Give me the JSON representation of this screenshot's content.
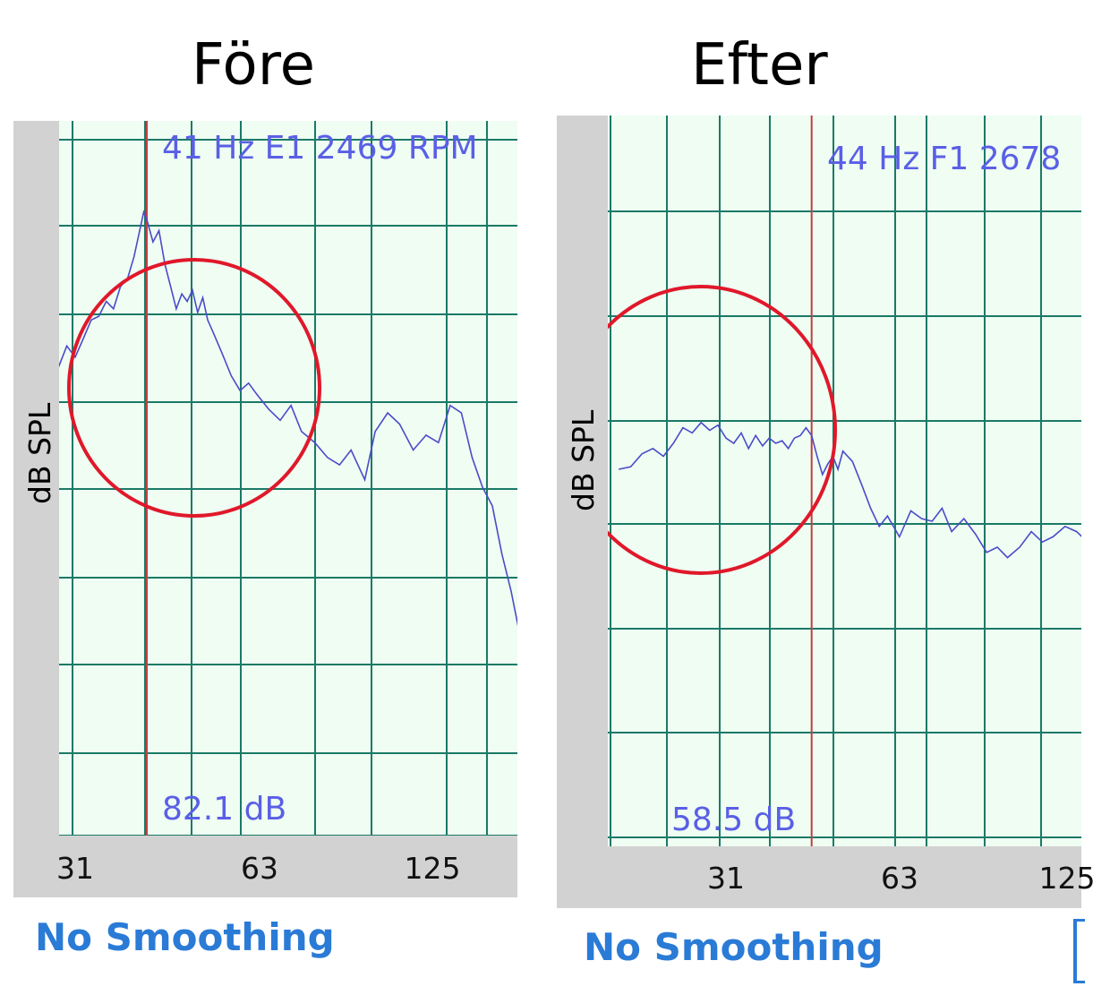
{
  "titles": {
    "before": "Före",
    "after": "Efter"
  },
  "chart_data": [
    {
      "type": "line",
      "title": "Före",
      "ylabel": "dB SPL",
      "xscale": "log",
      "x_ticks": [
        "31",
        "63",
        "125"
      ],
      "overlay_text": "41 Hz E1 2469 RPM",
      "level_text": "82.1 dB",
      "marker": {
        "label": "41 Hz",
        "x": 41,
        "color": "#c04040"
      },
      "series": [
        {
          "color": "#4b4bc8",
          "x": [
            26.5,
            28,
            29,
            30,
            31,
            32,
            33,
            34,
            35,
            36,
            37,
            38,
            39,
            40,
            40.5,
            41,
            42,
            43,
            44,
            45,
            46,
            47,
            48,
            49,
            50,
            51,
            52,
            53,
            55,
            57,
            59,
            61,
            63,
            66,
            69,
            72,
            75,
            79,
            83,
            87,
            91,
            96,
            100,
            105,
            110,
            116,
            122,
            128,
            134,
            140,
            146,
            152,
            158,
            164,
            170,
            175
          ],
          "y": [
            0.7,
            0.69,
            0.72,
            0.78,
            0.75,
            0.8,
            0.85,
            0.86,
            0.9,
            0.88,
            0.94,
            0.96,
            1.02,
            1.1,
            1.14,
            1.12,
            1.06,
            1.09,
            1.0,
            0.94,
            0.88,
            0.92,
            0.9,
            0.93,
            0.87,
            0.91,
            0.85,
            0.82,
            0.76,
            0.7,
            0.66,
            0.68,
            0.65,
            0.61,
            0.58,
            0.62,
            0.55,
            0.52,
            0.48,
            0.46,
            0.5,
            0.42,
            0.55,
            0.6,
            0.57,
            0.5,
            0.54,
            0.52,
            0.62,
            0.6,
            0.48,
            0.4,
            0.35,
            0.22,
            0.12,
            0.02
          ]
        }
      ]
    },
    {
      "type": "line",
      "title": "Efter",
      "ylabel": "dB SPL",
      "xscale": "log",
      "x_ticks": [
        "31",
        "63",
        "125"
      ],
      "overlay_text": "44 Hz F1 2678",
      "level_text": "58.5 dB",
      "marker": {
        "label": "44 Hz",
        "x": 44,
        "color": "#c04040"
      },
      "series": [
        {
          "color": "#4b4bc8",
          "x": [
            20,
            21,
            22,
            23,
            24,
            25,
            26,
            27,
            28,
            29,
            30,
            31,
            32,
            33,
            34,
            35,
            36,
            37,
            38,
            39,
            40,
            41,
            42,
            43,
            44,
            45,
            46,
            47,
            48,
            49,
            50,
            52,
            54,
            56,
            58,
            60,
            63,
            66,
            69,
            72,
            75,
            78,
            82,
            86,
            90,
            94,
            98,
            103,
            108,
            113,
            118,
            124,
            130,
            136
          ],
          "y": [
            0.5,
            0.51,
            0.56,
            0.58,
            0.55,
            0.6,
            0.66,
            0.64,
            0.68,
            0.65,
            0.67,
            0.62,
            0.6,
            0.64,
            0.58,
            0.63,
            0.59,
            0.62,
            0.6,
            0.61,
            0.58,
            0.62,
            0.63,
            0.66,
            0.63,
            0.55,
            0.48,
            0.52,
            0.55,
            0.5,
            0.57,
            0.53,
            0.44,
            0.35,
            0.28,
            0.32,
            0.24,
            0.34,
            0.31,
            0.3,
            0.35,
            0.26,
            0.31,
            0.25,
            0.18,
            0.2,
            0.16,
            0.2,
            0.26,
            0.22,
            0.24,
            0.28,
            0.26,
            0.22
          ]
        }
      ]
    }
  ]
}
